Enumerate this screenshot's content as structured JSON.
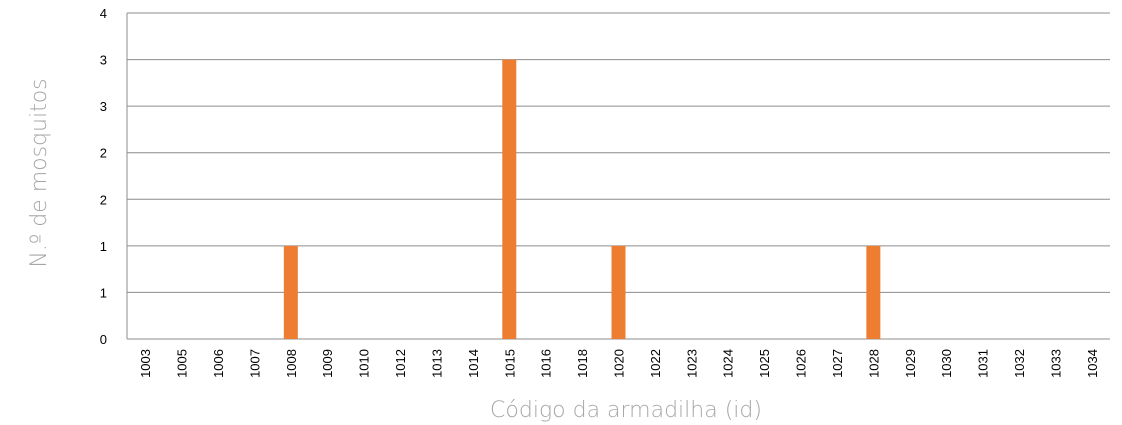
{
  "chart_data": {
    "type": "bar",
    "title": "",
    "xlabel": "Código da armadilha (id)",
    "ylabel": "N.º de mosquitos",
    "categories": [
      "1003",
      "1005",
      "1006",
      "1007",
      "1008",
      "1009",
      "1010",
      "1012",
      "1013",
      "1014",
      "1015",
      "1016",
      "1018",
      "1020",
      "1022",
      "1023",
      "1024",
      "1025",
      "1026",
      "1027",
      "1028",
      "1029",
      "1030",
      "1031",
      "1032",
      "1033",
      "1034"
    ],
    "values": [
      0,
      0,
      0,
      0,
      1,
      0,
      0,
      0,
      0,
      0,
      3,
      0,
      0,
      1,
      0,
      0,
      0,
      0,
      0,
      0,
      1,
      0,
      0,
      0,
      0,
      0,
      0
    ],
    "y_tick_labels": [
      "0",
      "1",
      "1",
      "2",
      "2",
      "3",
      "3",
      "4"
    ],
    "ylim": [
      0,
      3.5
    ],
    "grid": true,
    "legend": "none",
    "bar_color": "#ed7d31",
    "grid_color": "#8c8c8c",
    "axis_label_color": "#a6a6a6"
  }
}
